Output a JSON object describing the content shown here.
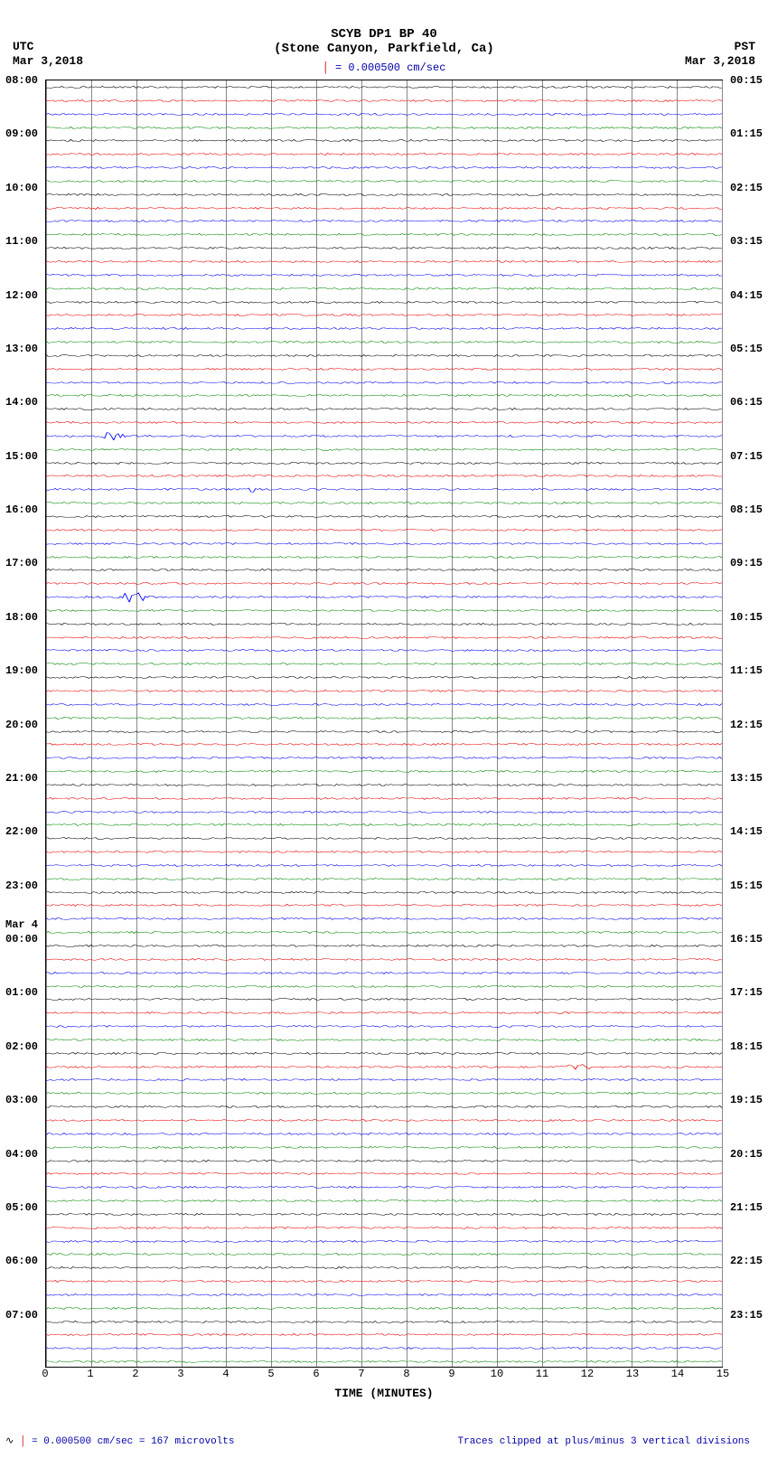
{
  "title": "SCYB DP1 BP 40",
  "subtitle": "(Stone Canyon, Parkfield, Ca)",
  "scale_bar_text": "= 0.000500 cm/sec",
  "tz_left": "UTC",
  "tz_right": "PST",
  "date_left": "Mar 3,2018",
  "date_right": "Mar 3,2018",
  "day_break_label": "Mar 4",
  "day_break_after_utc": "23:00",
  "xaxis": {
    "label": "TIME (MINUTES)",
    "min": 0,
    "max": 15,
    "ticks": [
      0,
      1,
      2,
      3,
      4,
      5,
      6,
      7,
      8,
      9,
      10,
      11,
      12,
      13,
      14,
      15
    ]
  },
  "trace_colors": [
    "#000000",
    "#ee0000",
    "#0000ff",
    "#008800"
  ],
  "hours": [
    {
      "utc": "08:00",
      "pst": "00:15"
    },
    {
      "utc": "09:00",
      "pst": "01:15"
    },
    {
      "utc": "10:00",
      "pst": "02:15"
    },
    {
      "utc": "11:00",
      "pst": "03:15"
    },
    {
      "utc": "12:00",
      "pst": "04:15"
    },
    {
      "utc": "13:00",
      "pst": "05:15"
    },
    {
      "utc": "14:00",
      "pst": "06:15"
    },
    {
      "utc": "15:00",
      "pst": "07:15"
    },
    {
      "utc": "16:00",
      "pst": "08:15"
    },
    {
      "utc": "17:00",
      "pst": "09:15"
    },
    {
      "utc": "18:00",
      "pst": "10:15"
    },
    {
      "utc": "19:00",
      "pst": "11:15"
    },
    {
      "utc": "20:00",
      "pst": "12:15"
    },
    {
      "utc": "21:00",
      "pst": "13:15"
    },
    {
      "utc": "22:00",
      "pst": "14:15"
    },
    {
      "utc": "23:00",
      "pst": "15:15"
    },
    {
      "utc": "00:00",
      "pst": "16:15"
    },
    {
      "utc": "01:00",
      "pst": "17:15"
    },
    {
      "utc": "02:00",
      "pst": "18:15"
    },
    {
      "utc": "03:00",
      "pst": "19:15"
    },
    {
      "utc": "04:00",
      "pst": "20:15"
    },
    {
      "utc": "05:00",
      "pst": "21:15"
    },
    {
      "utc": "06:00",
      "pst": "22:15"
    },
    {
      "utc": "07:00",
      "pst": "23:15"
    }
  ],
  "traces_per_hour": 4,
  "baseline_noise_amp": 2.0,
  "events": [
    {
      "utc": "14:00",
      "sub": 2,
      "minute": 1.4,
      "amp": 12,
      "dur": 0.6
    },
    {
      "utc": "15:00",
      "sub": 2,
      "minute": 4.6,
      "amp": 10,
      "dur": 0.3
    },
    {
      "utc": "17:00",
      "sub": 2,
      "minute": 1.9,
      "amp": 15,
      "dur": 0.7
    },
    {
      "utc": "02:00",
      "sub": 1,
      "minute": 11.8,
      "amp": 12,
      "dur": 0.5
    }
  ],
  "footer_left": "= 0.000500 cm/sec =    167 microvolts",
  "footer_left_prefix": "I",
  "footer_right": "Traces clipped at plus/minus 3 vertical divisions",
  "plot_background": "#ffffff",
  "grid_color": "#888888"
}
